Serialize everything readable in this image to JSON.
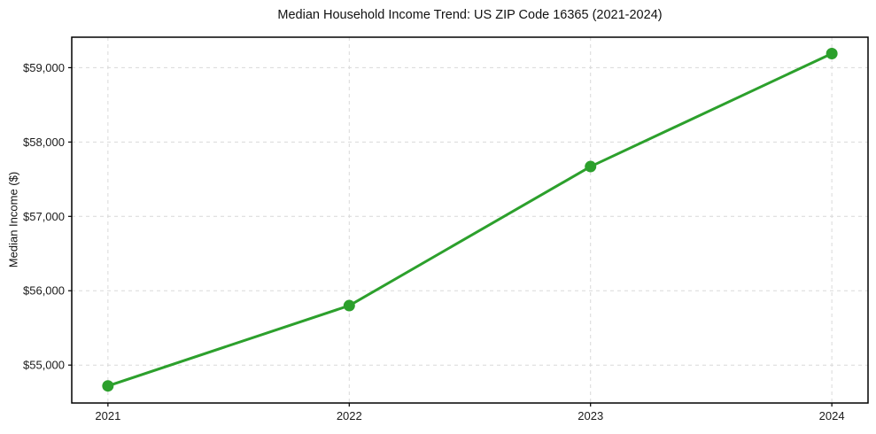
{
  "figure": {
    "background": "#ffffff"
  },
  "chart_data": {
    "type": "line",
    "title": "Median Household Income Trend: US ZIP Code 16365 (2021-2024)",
    "xlabel": "",
    "ylabel": "Median Income ($)",
    "x": [
      2021,
      2022,
      2023,
      2024
    ],
    "values": [
      54720,
      55800,
      57670,
      59190
    ],
    "series_name": "Median household income",
    "xticks": [
      2021,
      2022,
      2023,
      2024
    ],
    "xtick_labels": [
      "2021",
      "2022",
      "2023",
      "2024"
    ],
    "yticks": [
      55000,
      56000,
      57000,
      58000,
      59000
    ],
    "ytick_labels": [
      "$55,000",
      "$56,000",
      "$57,000",
      "$58,000",
      "$59,000"
    ],
    "xlim": [
      2020.85,
      2024.15
    ],
    "ylim": [
      54490,
      59410
    ],
    "grid": true,
    "grid_style": "dashed",
    "legend": "none",
    "line_color": "#2ca02c",
    "marker": "circle",
    "grid_color": "#d9d9d9",
    "axis_color": "#000000",
    "tick_label_color": "#1a1a1a"
  }
}
